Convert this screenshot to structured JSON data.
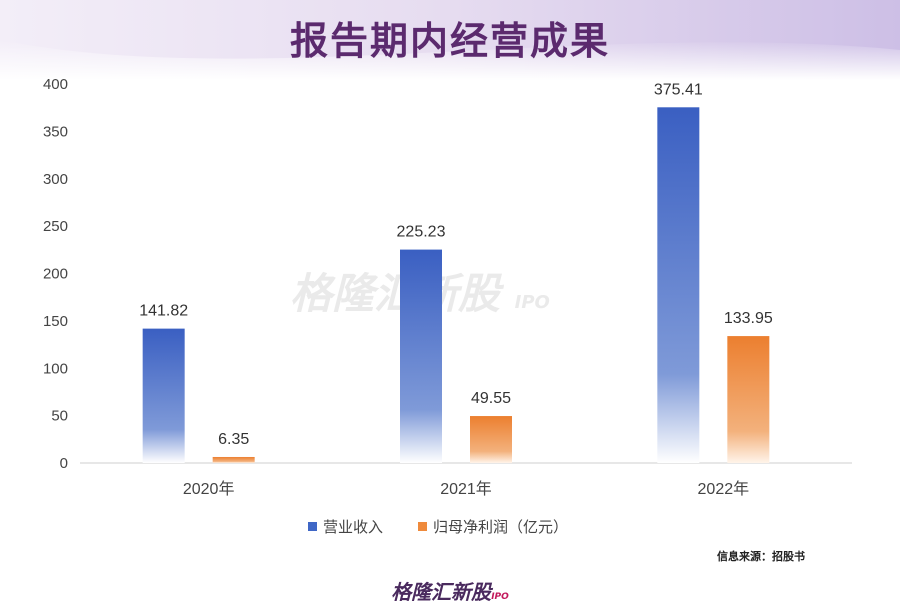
{
  "title": "报告期内经营成果",
  "source": "信息来源：招股书",
  "brand": "格隆汇新股",
  "brand_sub": "IPO",
  "colors": {
    "revenue": "#3f67c6",
    "profit": "#ef8a3c",
    "title": "#5b2a6e"
  },
  "chart_data": {
    "type": "bar",
    "categories": [
      "2020年",
      "2021年",
      "2022年"
    ],
    "series": [
      {
        "name": "营业收入",
        "values": [
          141.82,
          225.23,
          375.41
        ]
      },
      {
        "name": "归母净利润（亿元）",
        "values": [
          6.35,
          49.55,
          133.95
        ]
      }
    ],
    "ylim": [
      0,
      400
    ],
    "yticks": [
      0,
      50,
      100,
      150,
      200,
      250,
      300,
      350,
      400
    ],
    "data_labels": [
      [
        "141.82",
        "225.23",
        "375.41"
      ],
      [
        "6.35",
        "49.55",
        "133.95"
      ]
    ],
    "grid": false,
    "legend": "bottom"
  }
}
